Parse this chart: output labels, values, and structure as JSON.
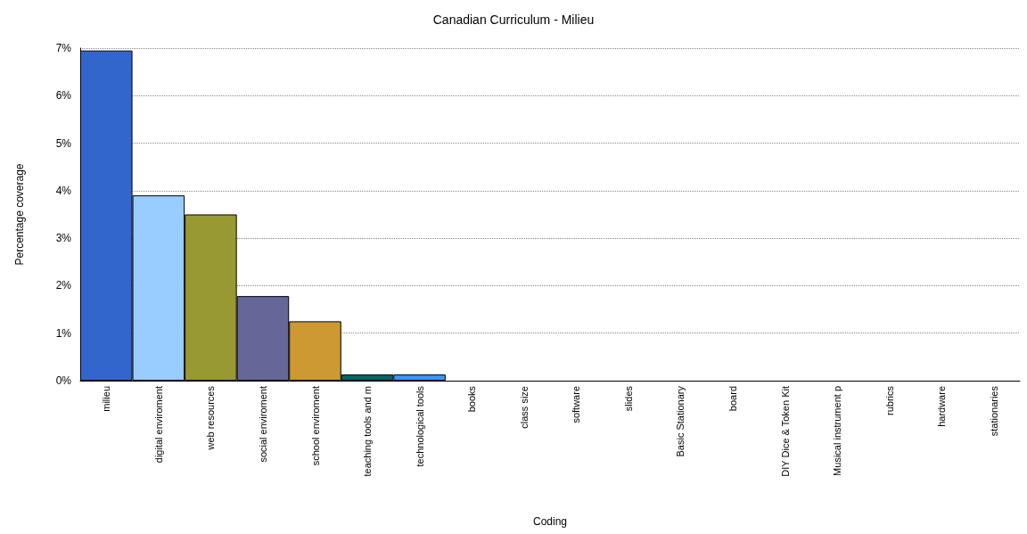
{
  "chart_data": {
    "type": "bar",
    "title": "Canadian Curriculum - Milieu",
    "xlabel": "Coding",
    "ylabel": "Percentage coverage",
    "categories": [
      "milieu",
      "digital enviroment",
      "web resources",
      "social enviroment",
      "school enviroment",
      "teaching tools and m",
      "technological tools",
      "books",
      "class size",
      "software",
      "slides",
      "Basic Stationary",
      "board",
      "DIY Dice & Token Kit",
      "Musical instrument p",
      "rubrics",
      "hardware",
      "stationaries"
    ],
    "values": [
      6.95,
      3.9,
      3.5,
      1.78,
      1.25,
      0.13,
      0.13,
      0,
      0,
      0,
      0,
      0,
      0,
      0,
      0,
      0,
      0,
      0
    ],
    "colors": [
      "#3366cc",
      "#99ccff",
      "#999933",
      "#666699",
      "#cc9933",
      "#006666",
      "#3399ff",
      "#3366cc",
      "#99ccff",
      "#999933",
      "#666699",
      "#cc9933",
      "#006666",
      "#3399ff",
      "#3366cc",
      "#99ccff",
      "#999933",
      "#666699"
    ],
    "ylim": [
      0,
      7
    ],
    "yticks": [
      {
        "value": 0,
        "label": "0%"
      },
      {
        "value": 1,
        "label": "1%"
      },
      {
        "value": 2,
        "label": "2%"
      },
      {
        "value": 3,
        "label": "3%"
      },
      {
        "value": 4,
        "label": "4%"
      },
      {
        "value": 5,
        "label": "5%"
      },
      {
        "value": 6,
        "label": "6%"
      },
      {
        "value": 7,
        "label": "7%"
      }
    ],
    "grid": "y",
    "legend": false
  }
}
